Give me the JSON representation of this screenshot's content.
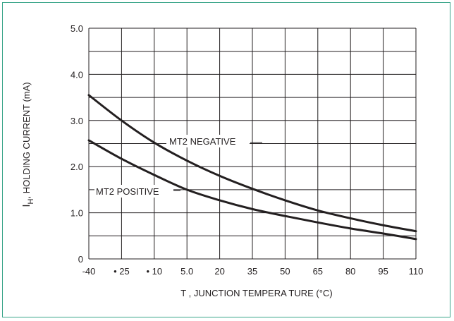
{
  "colors": {
    "frame": "#3aa58a",
    "ink": "#231f20"
  },
  "chart_data": {
    "type": "line",
    "title": "",
    "xlabel": "T , JUNCTION TEMPERA TURE (°C)",
    "ylabel_main": "I",
    "ylabel_sub": "H",
    "ylabel_rest": ", HOLDING CURRENT (mA)",
    "x_ticks": [
      "-40",
      "• 25",
      "• 10",
      "5.0",
      "20",
      "35",
      "50",
      "65",
      "80",
      "95",
      "110"
    ],
    "y_ticks": [
      "0",
      "1.0",
      "2.0",
      "3.0",
      "4.0",
      "5.0"
    ],
    "x": [
      -40,
      -25,
      -10,
      5,
      20,
      35,
      50,
      65,
      80,
      95,
      110
    ],
    "xlim": [
      -40,
      110
    ],
    "ylim": [
      0,
      5
    ],
    "grid": true,
    "series": [
      {
        "name": "MT2 NEGATIVE",
        "values": [
          3.55,
          3.0,
          2.52,
          2.13,
          1.8,
          1.52,
          1.27,
          1.05,
          0.88,
          0.73,
          0.6
        ]
      },
      {
        "name": "MT2 POSITIVE",
        "values": [
          2.57,
          2.17,
          1.82,
          1.5,
          1.27,
          1.08,
          0.93,
          0.79,
          0.66,
          0.55,
          0.43
        ]
      }
    ]
  }
}
